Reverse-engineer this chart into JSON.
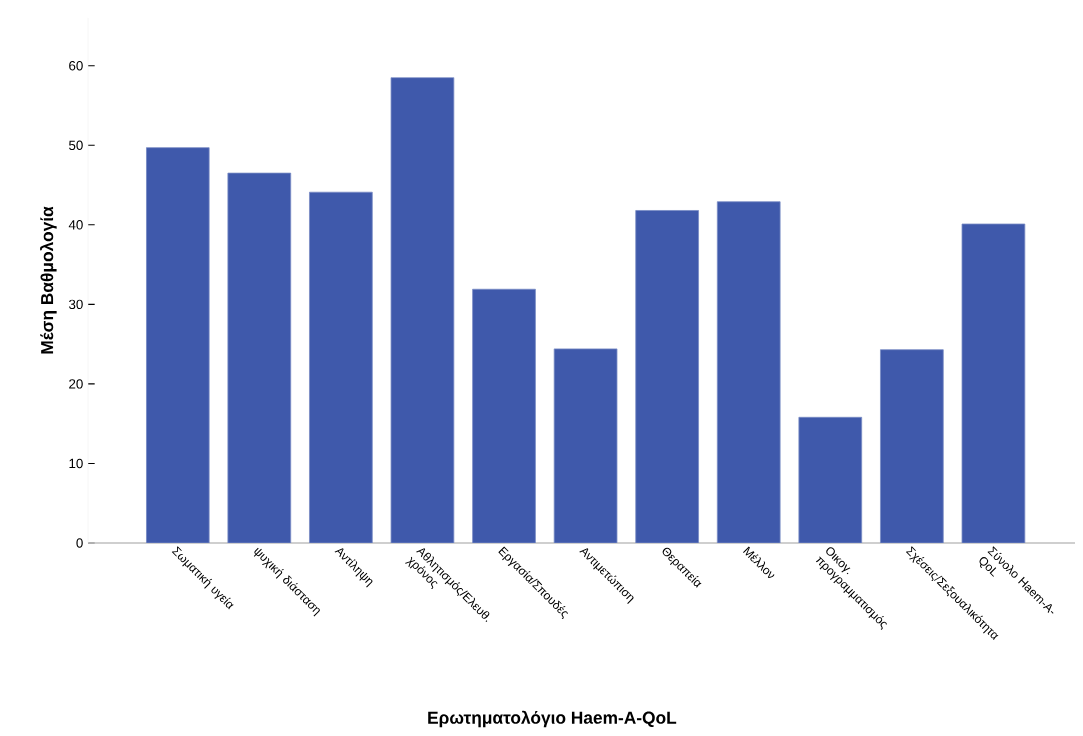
{
  "chart_data": {
    "type": "bar",
    "xlabel": "Ερωτηματολόγιο Haem-A-QoL",
    "ylabel": "Μέση Βαθμολογία",
    "categories": [
      "Σωματική υγεία",
      "ψυχική διάσταση",
      "Αντίληψη",
      "Αθλητισμός/Ελευθ. χρόνος",
      "Εργασία/Σπουδές",
      "Αντιμετώπιση",
      "Θεραπεία",
      "Μέλλον",
      "Οικογ. προγραμματισμός",
      "Σχέσεις/Σεξουαλικότητα",
      "Σύνολο Haem-A-QoL"
    ],
    "values": [
      49.7,
      46.5,
      44.1,
      58.5,
      31.9,
      24.4,
      41.8,
      42.9,
      15.8,
      24.3,
      40.1
    ],
    "color": "#3f59ab",
    "ylim": [
      0,
      66
    ],
    "yticks": [
      0,
      10,
      20,
      30,
      40,
      50,
      60
    ],
    "grid": false
  }
}
